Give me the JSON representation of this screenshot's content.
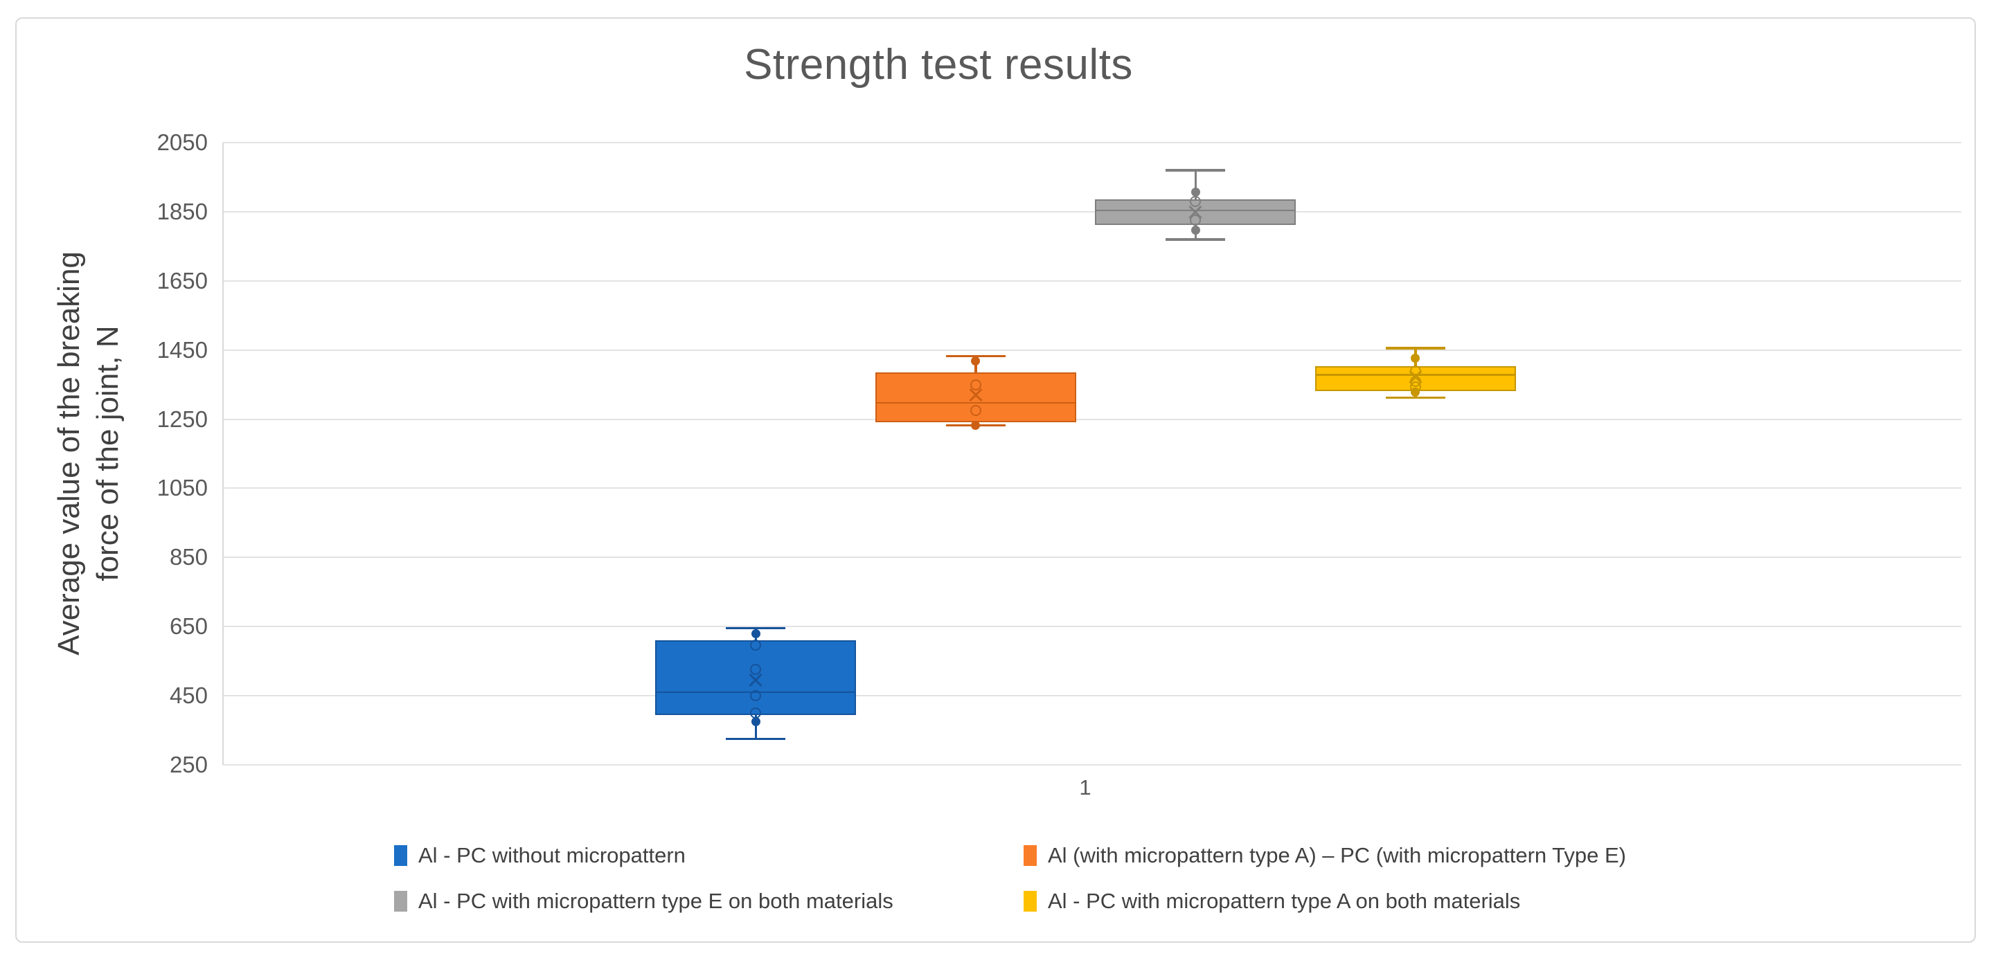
{
  "title": "Strength test results",
  "y_axis": {
    "title_lines": [
      "Average value of the breaking",
      "force of the joint, N"
    ],
    "tick_labels": [
      "250",
      "450",
      "650",
      "850",
      "1050",
      "1250",
      "1450",
      "1650",
      "1850",
      "2050"
    ]
  },
  "x_axis": {
    "category": "1"
  },
  "colors": {
    "frame_border": "#d9d9d9",
    "gridline": "#e3e3e3",
    "axis_line": "#d9d9d9",
    "title_text": "#595959",
    "tick_text": "#595959",
    "legend_text": "#404040"
  },
  "chart_data": {
    "type": "box",
    "title": "Strength test results",
    "xlabel": "",
    "ylabel": "Average value of the breaking force of the joint, N",
    "categories": [
      "1"
    ],
    "ylim": [
      250,
      2050
    ],
    "yticks": [
      250,
      450,
      650,
      850,
      1050,
      1250,
      1450,
      1650,
      1850,
      2050
    ],
    "grid": true,
    "legend_position": "bottom",
    "series": [
      {
        "name": "Al - PC without micropattern",
        "color": "#1b6fc7",
        "stroke": "#15539c",
        "whisker_low": 325,
        "q1": 395,
        "median": 460,
        "mean": 495,
        "q3": 610,
        "whisker_high": 645,
        "inner_points": [
          596,
          526,
          450,
          400
        ],
        "outliers": [
          630,
          375
        ]
      },
      {
        "name": "Al (with micropattern type A) – PC (with micropattern Type E)",
        "color": "#f97d28",
        "stroke": "#cc5f14",
        "whisker_low": 1232,
        "q1": 1242,
        "median": 1297,
        "mean": 1320,
        "q3": 1385,
        "whisker_high": 1432,
        "inner_points": [
          1349,
          1275
        ],
        "outliers": [
          1418,
          1232
        ]
      },
      {
        "name": "Al - PC with micropattern type E on both materials",
        "color": "#a6a6a6",
        "stroke": "#7f7f7f",
        "whisker_low": 1770,
        "q1": 1812,
        "median": 1854,
        "mean": 1849,
        "q3": 1886,
        "whisker_high": 1970,
        "inner_points": [
          1880,
          1826
        ],
        "outliers": [
          1906,
          1796
        ]
      },
      {
        "name": "Al - PC with micropattern type A on both materials",
        "color": "#ffc000",
        "stroke": "#c79600",
        "whisker_low": 1312,
        "q1": 1332,
        "median": 1378,
        "mean": 1372,
        "q3": 1404,
        "whisker_high": 1455,
        "inner_points": [
          1390,
          1360,
          1344
        ],
        "outliers": [
          1426,
          1328
        ]
      }
    ]
  }
}
